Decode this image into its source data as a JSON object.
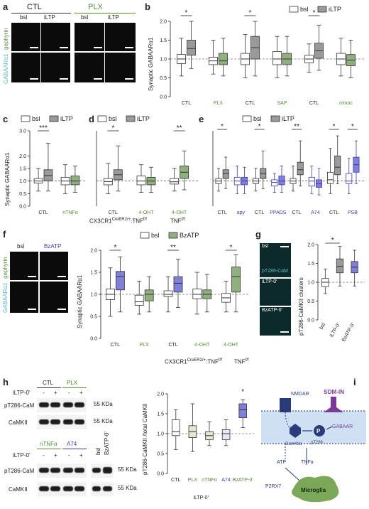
{
  "colors": {
    "ctl_fill": "#9a9a9a",
    "plx_fill": "#8fb07c",
    "green_text": "#5a8a3a",
    "blue_text": "#3b3ba8",
    "blue_fill": "#8080d8",
    "cyan_text": "#5fb8c8",
    "membrane": "#cfe0f4",
    "dark_navy": "#1f2f66",
    "purple": "#7a3a9a"
  },
  "panel_a": {
    "letter": "a",
    "group_ctl": "CTL",
    "group_plx": "PLX",
    "col_bsl": "bsl",
    "col_iltp": "iLTP",
    "label_gephyrin": "gephyrin",
    "label_gabaar": "GABAARα1"
  },
  "panel_b": {
    "letter": "b",
    "ylabel": "Synaptic GABAARα1",
    "legend": [
      "bsl",
      "iLTP"
    ],
    "groups": [
      "CTL",
      "PLX",
      "CTL",
      "SAP",
      "CTL",
      "minoc"
    ],
    "sig": [
      "*",
      "*",
      "*"
    ]
  },
  "panel_c": {
    "letter": "c",
    "ylabel": "Synaptic GABAARα1",
    "legend": [
      "bsl",
      "iLTP"
    ],
    "groups": [
      "CTL",
      "nTNFα"
    ],
    "sig": [
      "***"
    ]
  },
  "panel_d": {
    "letter": "d",
    "legend": [
      "bsl",
      "iLTP"
    ],
    "groups": [
      "CTL",
      "4-OHT",
      "4-OHT"
    ],
    "genotype1": "CX3CR1",
    "genotype1_sup": "CreER2/+",
    "genotype1_tail": ":TNF",
    "genotype1_sup2": "f/f",
    "genotype2": "TNF",
    "genotype2_sup": "f/f",
    "sig": [
      "*",
      "**"
    ]
  },
  "panel_e": {
    "letter": "e",
    "legend": [
      "bsl",
      "iLTP"
    ],
    "groups": [
      "CTL",
      "apy",
      "CTL",
      "PPADS",
      "CTL",
      "A74",
      "CTL",
      "PSB"
    ],
    "sig": [
      "*",
      "*",
      "**",
      "*",
      "*"
    ]
  },
  "panel_f": {
    "letter": "f",
    "img_label_left": "bsl",
    "img_label_right": "BzATP",
    "label_gephyrin": "gephyrin",
    "label_gabaar": "GABAARα1",
    "ylabel": "Synaptic GABAARα1",
    "legend": [
      "bsl",
      "BzATP"
    ],
    "groups": [
      "CTL",
      "PLX",
      "CTL",
      "4-OHT",
      "4-OHT"
    ],
    "genotype1": "CX3CR1",
    "genotype1_sup": "CreER2/+",
    "genotype1_tail": ":TNF",
    "genotype1_sup2": "f/f",
    "genotype2": "TNF",
    "genotype2_sup": "f/f",
    "sig": [
      "*",
      "**",
      "*"
    ]
  },
  "panel_g": {
    "letter": "g",
    "img_labels": [
      "bsl",
      "pT286-CaM",
      "iLTP-0'",
      "BzATP-0'"
    ],
    "ylabel": "pT286-CaMKII clusters",
    "groups": [
      "bsl",
      "iLTP-0'",
      "BzATP-0'"
    ],
    "sig": [
      "*"
    ]
  },
  "panel_h": {
    "letter": "h",
    "top_groups": [
      "CTL",
      "PLX"
    ],
    "bottom_groups": [
      "nTNFα",
      "A74"
    ],
    "extra_cols": [
      "bsl",
      "BzATP-0'"
    ],
    "treat_label": "iLTP-0'",
    "treat_marks": [
      "-",
      "+",
      "-",
      "+"
    ],
    "row_labels": [
      "pT286-CaM",
      "CaMKII"
    ],
    "kda": [
      "55 KDa",
      "55 KDa",
      "55 KDa",
      "55 KDa"
    ],
    "ylabel": "pT286-CaMKII /total CaMKII",
    "xgroups": [
      "CTL",
      "PLX",
      "nTNFα",
      "A74"
    ],
    "xgroup_under": "iLTP-0'",
    "x_right": "BzATP-0'",
    "sig": [
      "*"
    ]
  },
  "panel_i": {
    "letter": "i",
    "labels": {
      "nmdar": "NMDAR",
      "som": "SOM-IN",
      "camk": "CamKIIα",
      "p": "P",
      "pt286": "pT286",
      "gabaar": "GABAAR",
      "atp": "ATP",
      "tnf": "TNFα",
      "p2rx7": "P2RX7",
      "microglia": "Microglia"
    }
  },
  "chart_data": [
    {
      "id": "b",
      "type": "box",
      "ylabel": "Synaptic GABAARα1",
      "ylim": [
        0.0,
        2.0
      ],
      "yticks": [
        0.0,
        0.5,
        1.0,
        1.5,
        2.0
      ],
      "categories": [
        "CTL",
        "PLX",
        "CTL",
        "SAP",
        "CTL",
        "minoc"
      ],
      "series": [
        {
          "name": "bsl",
          "boxes": [
            [
              0.55,
              0.88,
              1.0,
              1.12,
              1.55
            ],
            [
              0.6,
              0.85,
              0.95,
              1.05,
              1.5
            ],
            [
              0.5,
              0.85,
              1.0,
              1.15,
              1.65
            ],
            [
              0.5,
              0.85,
              1.0,
              1.2,
              1.6
            ],
            [
              0.65,
              0.9,
              1.0,
              1.1,
              1.4
            ],
            [
              0.55,
              0.85,
              1.0,
              1.15,
              1.55
            ]
          ]
        },
        {
          "name": "iLTP",
          "boxes": [
            [
              0.75,
              1.1,
              1.28,
              1.5,
              2.0
            ],
            [
              0.55,
              0.85,
              0.95,
              1.15,
              1.55
            ],
            [
              0.55,
              1.0,
              1.3,
              1.6,
              2.0
            ],
            [
              0.55,
              0.85,
              1.0,
              1.15,
              1.6
            ],
            [
              0.7,
              1.02,
              1.22,
              1.42,
              1.9
            ],
            [
              0.5,
              0.82,
              0.97,
              1.12,
              1.5
            ]
          ]
        }
      ]
    },
    {
      "id": "c",
      "type": "box",
      "ylabel": "Synaptic GABAARα1",
      "ylim": [
        0.0,
        3.0
      ],
      "yticks": [
        0.0,
        0.5,
        1.0,
        1.5,
        2.0,
        3.0
      ],
      "categories": [
        "CTL",
        "nTNFα"
      ],
      "series": [
        {
          "name": "bsl",
          "boxes": [
            [
              0.6,
              0.92,
              1.0,
              1.1,
              1.5
            ],
            [
              0.5,
              0.85,
              1.0,
              1.15,
              1.65
            ]
          ]
        },
        {
          "name": "iLTP",
          "boxes": [
            [
              0.6,
              1.0,
              1.22,
              1.45,
              2.5
            ],
            [
              0.55,
              0.85,
              1.0,
              1.2,
              1.6
            ]
          ]
        }
      ]
    },
    {
      "id": "d",
      "type": "box",
      "ylim": [
        0.0,
        3.0
      ],
      "categories": [
        "CTL",
        "4-OHT",
        "4-OHT"
      ],
      "series": [
        {
          "name": "bsl",
          "boxes": [
            [
              0.5,
              0.85,
              0.98,
              1.1,
              1.7
            ],
            [
              0.55,
              0.85,
              1.0,
              1.2,
              1.65
            ],
            [
              0.6,
              0.88,
              0.97,
              1.1,
              1.5
            ]
          ]
        },
        {
          "name": "iLTP",
          "boxes": [
            [
              0.6,
              1.05,
              1.25,
              1.45,
              2.4
            ],
            [
              0.55,
              0.85,
              1.0,
              1.15,
              1.55
            ],
            [
              0.65,
              1.1,
              1.35,
              1.6,
              2.2
            ]
          ]
        }
      ]
    },
    {
      "id": "e",
      "type": "box",
      "ylim": [
        0.0,
        3.0
      ],
      "categories": [
        "CTL",
        "apy",
        "CTL",
        "PPADS",
        "CTL",
        "A74",
        "CTL",
        "PSB"
      ],
      "series": [
        {
          "name": "bsl",
          "boxes": [
            [
              0.6,
              0.9,
              1.0,
              1.1,
              1.5
            ],
            [
              0.5,
              0.85,
              1.0,
              1.15,
              1.6
            ],
            [
              0.6,
              0.9,
              1.0,
              1.1,
              1.5
            ],
            [
              0.55,
              0.8,
              0.95,
              1.05,
              1.3
            ],
            [
              0.6,
              0.9,
              1.0,
              1.1,
              1.6
            ],
            [
              0.5,
              0.8,
              1.0,
              1.15,
              1.6
            ],
            [
              0.5,
              0.9,
              1.05,
              1.35,
              2.3
            ],
            [
              0.5,
              0.9,
              1.0,
              1.3,
              1.9
            ]
          ]
        },
        {
          "name": "iLTP",
          "boxes": [
            [
              0.7,
              1.1,
              1.3,
              1.45,
              1.95
            ],
            [
              0.5,
              0.85,
              1.0,
              1.15,
              1.55
            ],
            [
              0.7,
              1.1,
              1.3,
              1.5,
              2.2
            ],
            [
              0.55,
              0.85,
              1.0,
              1.2,
              1.6
            ],
            [
              0.8,
              1.25,
              1.45,
              1.75,
              2.6
            ],
            [
              0.45,
              0.75,
              0.9,
              1.05,
              1.5
            ],
            [
              0.9,
              1.25,
              1.55,
              2.0,
              2.8
            ],
            [
              0.9,
              1.35,
              1.65,
              1.95,
              2.6
            ]
          ]
        }
      ]
    },
    {
      "id": "f",
      "type": "box",
      "ylabel": "Synaptic GABAARα1",
      "ylim": [
        0.0,
        2.0
      ],
      "yticks": [
        0.0,
        0.5,
        1.0,
        1.5,
        2.0
      ],
      "categories": [
        "CTL",
        "PLX",
        "CTL",
        "4-OHT",
        "4-OHT"
      ],
      "series": [
        {
          "name": "bsl",
          "boxes": [
            [
              0.5,
              0.88,
              1.0,
              1.12,
              1.6
            ],
            [
              0.55,
              0.75,
              0.83,
              0.98,
              1.3
            ],
            [
              0.6,
              0.95,
              1.0,
              1.08,
              1.4
            ],
            [
              0.55,
              0.9,
              1.0,
              1.12,
              1.5
            ],
            [
              0.6,
              0.82,
              0.92,
              1.02,
              1.3
            ]
          ]
        },
        {
          "name": "BzATP",
          "boxes": [
            [
              0.6,
              1.1,
              1.4,
              1.52,
              1.85
            ],
            [
              0.6,
              0.85,
              1.0,
              1.1,
              1.4
            ],
            [
              0.7,
              1.05,
              1.25,
              1.4,
              1.8
            ],
            [
              0.6,
              0.9,
              1.0,
              1.1,
              1.45
            ],
            [
              0.6,
              1.05,
              1.4,
              1.62,
              1.9
            ]
          ]
        }
      ]
    },
    {
      "id": "g",
      "type": "box",
      "ylabel": "pT286-CaMKII clusters",
      "ylim": [
        0.0,
        2.0
      ],
      "yticks": [
        0.0,
        0.5,
        1.0,
        1.5,
        2.0
      ],
      "categories": [
        "bsl",
        "iLTP-0'",
        "BzATP-0'"
      ],
      "series": [
        {
          "name": "values",
          "boxes": [
            [
              0.7,
              0.88,
              1.0,
              1.1,
              1.35
            ],
            [
              0.9,
              1.25,
              1.42,
              1.62,
              1.95
            ],
            [
              0.9,
              1.25,
              1.4,
              1.55,
              1.85
            ]
          ]
        }
      ]
    },
    {
      "id": "h",
      "type": "box",
      "ylabel": "pT286-CaMKII /total CaMKII",
      "ylim": [
        0.0,
        2.0
      ],
      "yticks": [
        0.0,
        0.5,
        1.0,
        1.5,
        2.0
      ],
      "categories": [
        "CTL",
        "PLX",
        "nTNFα",
        "A74",
        "BzATP-0'"
      ],
      "series": [
        {
          "name": "values",
          "boxes": [
            [
              0.6,
              0.95,
              1.05,
              1.35,
              1.6
            ],
            [
              0.55,
              0.9,
              1.05,
              1.2,
              1.75
            ],
            [
              0.7,
              0.85,
              0.95,
              1.05,
              1.3
            ],
            [
              0.7,
              0.85,
              1.0,
              1.1,
              1.35
            ],
            [
              1.15,
              1.4,
              1.6,
              1.75,
              1.85
            ]
          ]
        }
      ]
    }
  ]
}
